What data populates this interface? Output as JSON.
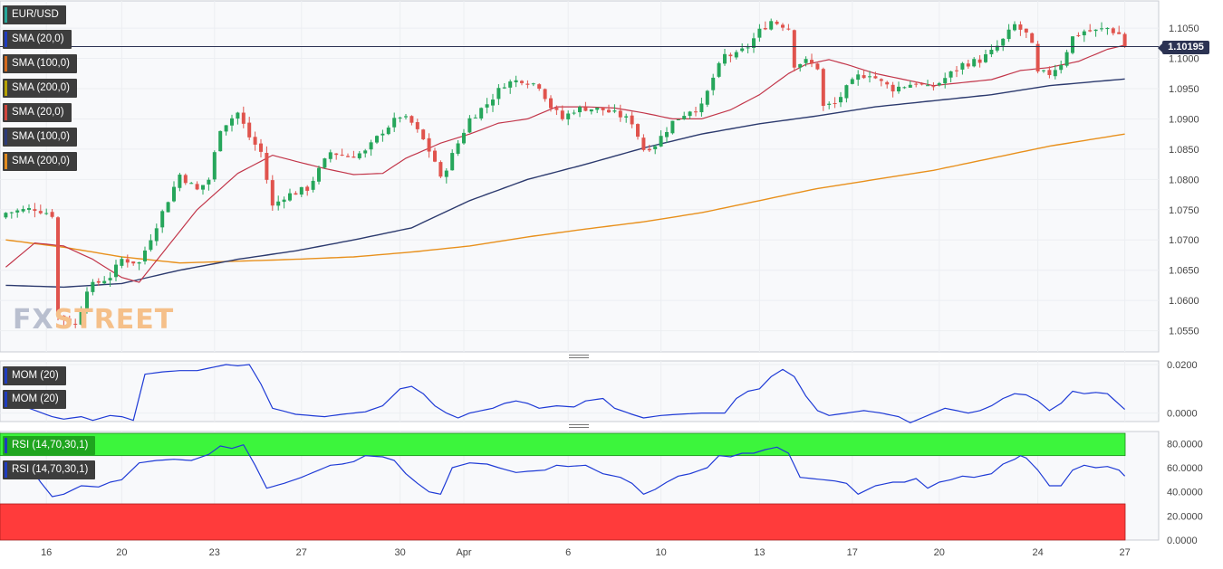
{
  "symbol": "EUR/USD",
  "current_price": "1.10195",
  "watermark": {
    "part1": "FX",
    "part2": "STREET"
  },
  "legends_main": [
    {
      "label": "EUR/USD",
      "color": "#26a69a"
    },
    {
      "label": "SMA (20,0)",
      "color": "#1f3cbf"
    },
    {
      "label": "SMA (100,0)",
      "color": "#d2691e"
    },
    {
      "label": "SMA (200,0)",
      "color": "#b5a100"
    },
    {
      "label": "SMA (20,0)",
      "color": "#d0453d"
    },
    {
      "label": "SMA (100,0)",
      "color": "#2c3a78"
    },
    {
      "label": "SMA (200,0)",
      "color": "#e08a1e"
    }
  ],
  "legends_mom": [
    {
      "label": "MOM (20)",
      "color": "#1f3cbf"
    },
    {
      "label": "MOM (20)",
      "color": "#1f3cbf"
    }
  ],
  "legends_rsi": [
    {
      "label": "RSI (14,70,30,1)",
      "color": "#1f3cbf"
    },
    {
      "label": "RSI (14,70,30,1)",
      "color": "#1f3cbf"
    }
  ],
  "colors": {
    "bull": "#26a65b",
    "bear": "#e0534d",
    "sma20": "#c2364a",
    "sma100": "#2c3a6e",
    "sma200": "#e8901c",
    "indicator_line": "#1f3bd6",
    "rsi_overbought": "#3cf53c",
    "rsi_oversold": "#ff3b3b",
    "price_line": "#2c3353"
  },
  "chart_data": {
    "type": "candlestick",
    "x_tick_labels": [
      "16",
      "20",
      "23",
      "27",
      "30",
      "Apr",
      "6",
      "10",
      "13",
      "17",
      "20",
      "24",
      "27"
    ],
    "price_axis": {
      "ticks": [
        "1.0550",
        "1.0600",
        "1.0650",
        "1.0700",
        "1.0750",
        "1.0800",
        "1.0850",
        "1.0900",
        "1.0950",
        "1.1000",
        "1.1050"
      ],
      "range": [
        1.0515,
        1.1095
      ]
    },
    "mom_axis": {
      "ticks": [
        "0.0200",
        "0.0000"
      ],
      "range": [
        -0.0035,
        0.0215
      ]
    },
    "rsi_axis": {
      "ticks": [
        "80.0000",
        "60.0000",
        "40.0000",
        "20.0000",
        "0.0000"
      ],
      "range": [
        0,
        90
      ],
      "overbought": 70,
      "oversold": 30
    },
    "candle_anchors": [
      [
        0,
        1.0745
      ],
      [
        5,
        1.0752
      ],
      [
        8,
        1.0742
      ],
      [
        9,
        1.0575
      ],
      [
        12,
        1.056
      ],
      [
        14,
        1.062
      ],
      [
        18,
        1.064
      ],
      [
        20,
        1.0668
      ],
      [
        23,
        1.0662
      ],
      [
        26,
        1.0725
      ],
      [
        30,
        1.0808
      ],
      [
        33,
        1.0782
      ],
      [
        35,
        1.08
      ],
      [
        37,
        1.0885
      ],
      [
        40,
        1.091
      ],
      [
        42,
        1.087
      ],
      [
        44,
        1.0845
      ],
      [
        46,
        1.0755
      ],
      [
        48,
        1.0772
      ],
      [
        52,
        1.0785
      ],
      [
        56,
        1.0845
      ],
      [
        59,
        1.0838
      ],
      [
        62,
        1.0845
      ],
      [
        65,
        1.088
      ],
      [
        68,
        1.0905
      ],
      [
        70,
        1.0893
      ],
      [
        72,
        1.0865
      ],
      [
        74,
        1.083
      ],
      [
        75,
        1.08
      ],
      [
        78,
        1.086
      ],
      [
        80,
        1.09
      ],
      [
        83,
        1.0925
      ],
      [
        86,
        1.0958
      ],
      [
        89,
        1.0965
      ],
      [
        92,
        1.0955
      ],
      [
        94,
        1.092
      ],
      [
        96,
        1.09
      ],
      [
        98,
        1.0915
      ],
      [
        100,
        1.0918
      ],
      [
        103,
        1.0915
      ],
      [
        106,
        1.0905
      ],
      [
        108,
        1.0895
      ],
      [
        110,
        1.085
      ],
      [
        112,
        1.0858
      ],
      [
        115,
        1.0895
      ],
      [
        118,
        1.0915
      ],
      [
        120,
        1.092
      ],
      [
        122,
        1.0968
      ],
      [
        124,
        1.1005
      ],
      [
        126,
        1.1005
      ],
      [
        128,
        1.102
      ],
      [
        130,
        1.1045
      ],
      [
        132,
        1.1062
      ],
      [
        134,
        1.1055
      ],
      [
        135,
        1.105
      ],
      [
        136,
        1.099
      ],
      [
        138,
        1.0995
      ],
      [
        140,
        1.0985
      ],
      [
        141,
        1.092
      ],
      [
        143,
        1.0925
      ],
      [
        145,
        1.095
      ],
      [
        147,
        1.097
      ],
      [
        149,
        1.0975
      ],
      [
        151,
        1.096
      ],
      [
        153,
        1.095
      ],
      [
        155,
        1.0955
      ],
      [
        157,
        1.096
      ],
      [
        159,
        1.095
      ],
      [
        161,
        1.096
      ],
      [
        163,
        1.0975
      ],
      [
        165,
        1.099
      ],
      [
        168,
        1.0997
      ],
      [
        170,
        1.101
      ],
      [
        172,
        1.103
      ],
      [
        174,
        1.1055
      ],
      [
        176,
        1.104
      ],
      [
        177,
        1.102
      ],
      [
        178,
        1.0975
      ],
      [
        180,
        1.0975
      ],
      [
        182,
        1.0992
      ],
      [
        184,
        1.1035
      ],
      [
        186,
        1.1045
      ],
      [
        188,
        1.1045
      ],
      [
        190,
        1.105
      ],
      [
        192,
        1.104
      ],
      [
        193,
        1.102
      ]
    ],
    "sma20_anchors": [
      [
        0,
        1.0655
      ],
      [
        5,
        1.0695
      ],
      [
        10,
        1.069
      ],
      [
        15,
        1.0668
      ],
      [
        20,
        1.0638
      ],
      [
        23,
        1.063
      ],
      [
        28,
        1.069
      ],
      [
        33,
        1.075
      ],
      [
        40,
        1.081
      ],
      [
        46,
        1.084
      ],
      [
        50,
        1.083
      ],
      [
        55,
        1.0818
      ],
      [
        60,
        1.0808
      ],
      [
        65,
        1.081
      ],
      [
        69,
        1.0835
      ],
      [
        75,
        1.086
      ],
      [
        80,
        1.0875
      ],
      [
        85,
        1.0893
      ],
      [
        90,
        1.09
      ],
      [
        95,
        1.092
      ],
      [
        100,
        1.092
      ],
      [
        105,
        1.0918
      ],
      [
        110,
        1.091
      ],
      [
        115,
        1.09
      ],
      [
        120,
        1.09
      ],
      [
        125,
        1.0915
      ],
      [
        130,
        1.094
      ],
      [
        135,
        1.0975
      ],
      [
        138,
        1.099
      ],
      [
        142,
        1.0998
      ],
      [
        145,
        1.099
      ],
      [
        150,
        1.0975
      ],
      [
        155,
        1.0965
      ],
      [
        160,
        1.0955
      ],
      [
        165,
        1.096
      ],
      [
        170,
        1.0965
      ],
      [
        175,
        1.098
      ],
      [
        180,
        1.0985
      ],
      [
        185,
        1.0995
      ],
      [
        190,
        1.1015
      ],
      [
        193,
        1.1022
      ]
    ],
    "sma100_anchors": [
      [
        0,
        1.0625
      ],
      [
        10,
        1.0622
      ],
      [
        20,
        1.0628
      ],
      [
        30,
        1.065
      ],
      [
        40,
        1.0668
      ],
      [
        50,
        1.0682
      ],
      [
        60,
        1.07
      ],
      [
        70,
        1.072
      ],
      [
        80,
        1.0765
      ],
      [
        90,
        1.08
      ],
      [
        100,
        1.0825
      ],
      [
        110,
        1.0852
      ],
      [
        120,
        1.0875
      ],
      [
        130,
        1.0892
      ],
      [
        140,
        1.0905
      ],
      [
        150,
        1.092
      ],
      [
        160,
        1.093
      ],
      [
        170,
        1.094
      ],
      [
        180,
        1.0955
      ],
      [
        193,
        1.0966
      ]
    ],
    "sma200_anchors": [
      [
        0,
        1.07
      ],
      [
        10,
        1.0688
      ],
      [
        20,
        1.0672
      ],
      [
        30,
        1.0662
      ],
      [
        40,
        1.0665
      ],
      [
        50,
        1.0668
      ],
      [
        60,
        1.0672
      ],
      [
        70,
        1.068
      ],
      [
        80,
        1.069
      ],
      [
        90,
        1.0705
      ],
      [
        100,
        1.0718
      ],
      [
        110,
        1.073
      ],
      [
        120,
        1.0745
      ],
      [
        130,
        1.0765
      ],
      [
        140,
        1.0785
      ],
      [
        150,
        1.08
      ],
      [
        160,
        1.0815
      ],
      [
        170,
        1.0835
      ],
      [
        180,
        1.0855
      ],
      [
        193,
        1.0875
      ]
    ],
    "mom_anchors": [
      [
        0,
        0.006
      ],
      [
        4,
        0.002
      ],
      [
        8,
        -0.0015
      ],
      [
        10,
        -0.0025
      ],
      [
        13,
        -0.0015
      ],
      [
        15,
        -0.003
      ],
      [
        18,
        -0.001
      ],
      [
        20,
        -0.0015
      ],
      [
        22,
        -0.003
      ],
      [
        24,
        0.016
      ],
      [
        27,
        0.017
      ],
      [
        30,
        0.0175
      ],
      [
        33,
        0.0175
      ],
      [
        36,
        0.019
      ],
      [
        38,
        0.02
      ],
      [
        40,
        0.0195
      ],
      [
        42,
        0.02
      ],
      [
        44,
        0.012
      ],
      [
        46,
        0.002
      ],
      [
        50,
        -0.0005
      ],
      [
        55,
        -0.0015
      ],
      [
        58,
        -0.0005
      ],
      [
        62,
        0.0005
      ],
      [
        65,
        0.003
      ],
      [
        68,
        0.01
      ],
      [
        70,
        0.011
      ],
      [
        72,
        0.008
      ],
      [
        74,
        0.003
      ],
      [
        76,
        0.0
      ],
      [
        78,
        -0.002
      ],
      [
        80,
        0.0
      ],
      [
        84,
        0.002
      ],
      [
        86,
        0.004
      ],
      [
        88,
        0.005
      ],
      [
        90,
        0.004
      ],
      [
        92,
        0.002
      ],
      [
        95,
        0.003
      ],
      [
        98,
        0.0025
      ],
      [
        100,
        0.005
      ],
      [
        103,
        0.006
      ],
      [
        105,
        0.002
      ],
      [
        108,
        -0.0005
      ],
      [
        110,
        -0.002
      ],
      [
        113,
        -0.001
      ],
      [
        116,
        -0.0005
      ],
      [
        120,
        0.0
      ],
      [
        124,
        0.0
      ],
      [
        126,
        0.006
      ],
      [
        128,
        0.009
      ],
      [
        130,
        0.01
      ],
      [
        132,
        0.015
      ],
      [
        134,
        0.018
      ],
      [
        136,
        0.015
      ],
      [
        138,
        0.007
      ],
      [
        140,
        0.001
      ],
      [
        142,
        -0.001
      ],
      [
        145,
        0.0
      ],
      [
        148,
        0.001
      ],
      [
        151,
        0.0
      ],
      [
        154,
        -0.0015
      ],
      [
        156,
        -0.004
      ],
      [
        158,
        -0.002
      ],
      [
        160,
        0.0
      ],
      [
        162,
        0.002
      ],
      [
        164,
        0.001
      ],
      [
        166,
        0.0
      ],
      [
        168,
        0.001
      ],
      [
        170,
        0.003
      ],
      [
        172,
        0.006
      ],
      [
        174,
        0.008
      ],
      [
        176,
        0.0075
      ],
      [
        178,
        0.005
      ],
      [
        180,
        0.001
      ],
      [
        182,
        0.004
      ],
      [
        184,
        0.009
      ],
      [
        186,
        0.008
      ],
      [
        188,
        0.0085
      ],
      [
        190,
        0.008
      ],
      [
        193,
        0.0015
      ]
    ],
    "rsi_anchors": [
      [
        0,
        64
      ],
      [
        4,
        62
      ],
      [
        6,
        48
      ],
      [
        8,
        36
      ],
      [
        10,
        38
      ],
      [
        13,
        45
      ],
      [
        16,
        44
      ],
      [
        18,
        48
      ],
      [
        20,
        50
      ],
      [
        23,
        64
      ],
      [
        26,
        66
      ],
      [
        29,
        67
      ],
      [
        32,
        66
      ],
      [
        35,
        71
      ],
      [
        37,
        78
      ],
      [
        39,
        76
      ],
      [
        41,
        79
      ],
      [
        43,
        62
      ],
      [
        45,
        43
      ],
      [
        48,
        47
      ],
      [
        51,
        52
      ],
      [
        53,
        56
      ],
      [
        56,
        62
      ],
      [
        58,
        63
      ],
      [
        60,
        65
      ],
      [
        62,
        70
      ],
      [
        65,
        69
      ],
      [
        67,
        66
      ],
      [
        69,
        55
      ],
      [
        71,
        47
      ],
      [
        73,
        40
      ],
      [
        75,
        38
      ],
      [
        77,
        60
      ],
      [
        80,
        64
      ],
      [
        83,
        63
      ],
      [
        85,
        60
      ],
      [
        88,
        56
      ],
      [
        90,
        57
      ],
      [
        93,
        58
      ],
      [
        95,
        62
      ],
      [
        97,
        61
      ],
      [
        100,
        62
      ],
      [
        103,
        55
      ],
      [
        106,
        52
      ],
      [
        108,
        47
      ],
      [
        110,
        38
      ],
      [
        112,
        42
      ],
      [
        114,
        48
      ],
      [
        116,
        53
      ],
      [
        118,
        55
      ],
      [
        121,
        60
      ],
      [
        123,
        70
      ],
      [
        125,
        69
      ],
      [
        127,
        72
      ],
      [
        129,
        72
      ],
      [
        131,
        75
      ],
      [
        133,
        77
      ],
      [
        135,
        72
      ],
      [
        137,
        52
      ],
      [
        139,
        51
      ],
      [
        141,
        50
      ],
      [
        143,
        49
      ],
      [
        145,
        47
      ],
      [
        147,
        38
      ],
      [
        150,
        45
      ],
      [
        153,
        48
      ],
      [
        155,
        48
      ],
      [
        157,
        51
      ],
      [
        159,
        43
      ],
      [
        161,
        48
      ],
      [
        163,
        50
      ],
      [
        165,
        53
      ],
      [
        167,
        52
      ],
      [
        170,
        55
      ],
      [
        172,
        63
      ],
      [
        174,
        67
      ],
      [
        175,
        70
      ],
      [
        176,
        68
      ],
      [
        178,
        58
      ],
      [
        180,
        45
      ],
      [
        182,
        45
      ],
      [
        184,
        58
      ],
      [
        186,
        62
      ],
      [
        188,
        60
      ],
      [
        190,
        61
      ],
      [
        192,
        58
      ],
      [
        193,
        53
      ]
    ]
  }
}
